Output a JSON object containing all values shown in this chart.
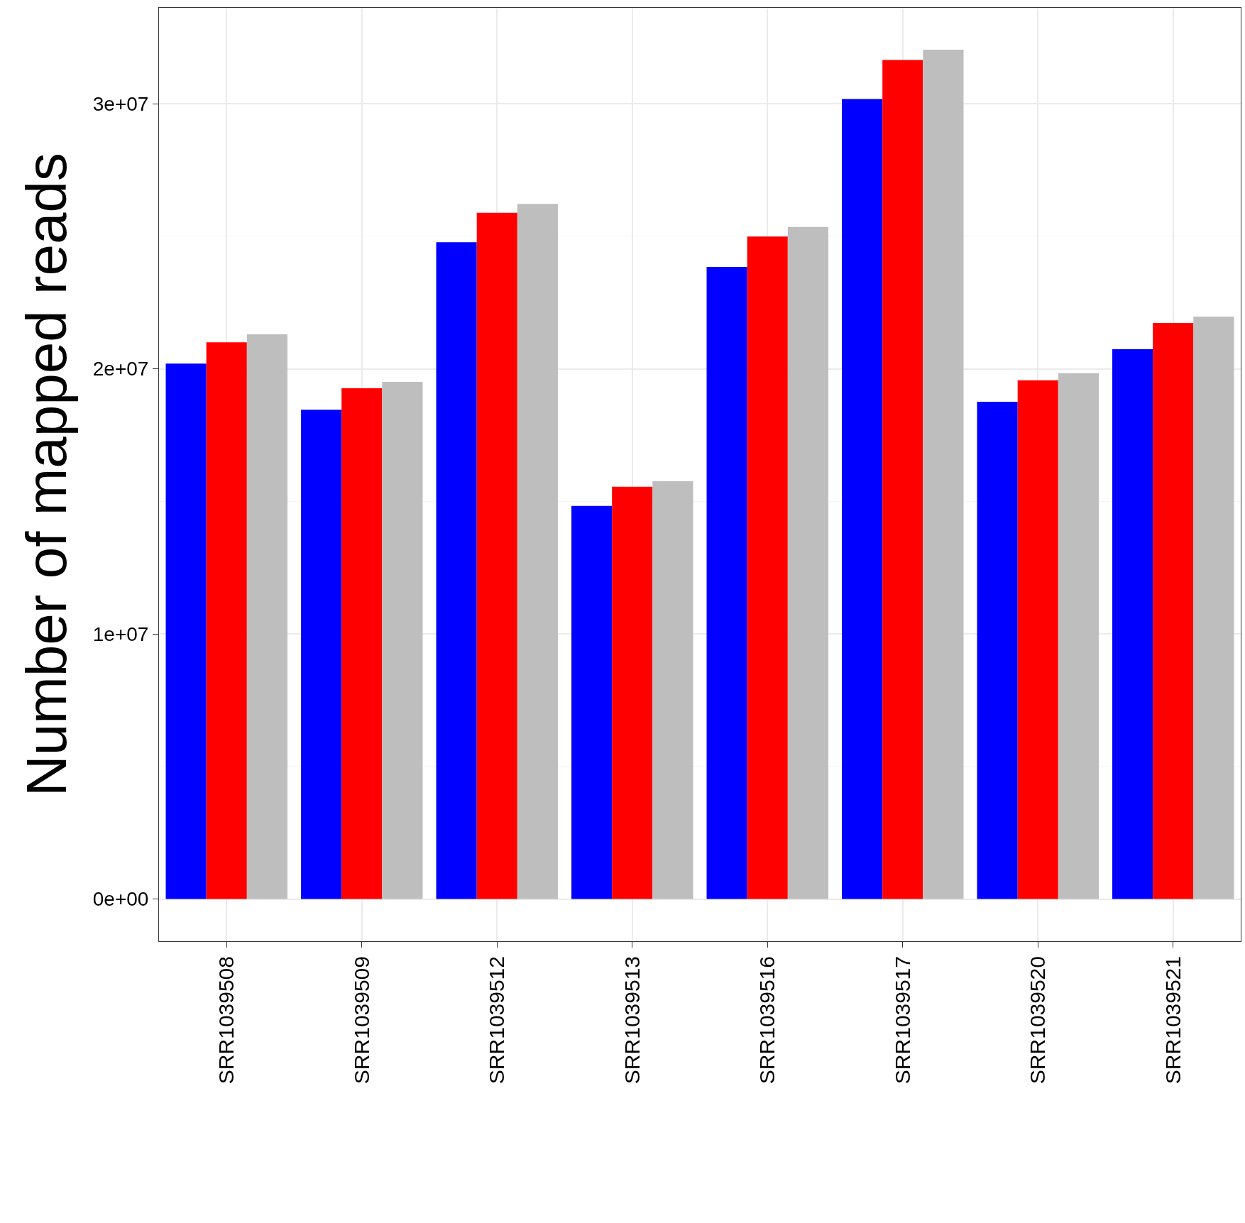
{
  "chart_data": {
    "type": "bar",
    "ylabel": "Number of mapped reads",
    "categories": [
      "SRR1039508",
      "SRR1039509",
      "SRR1039512",
      "SRR1039513",
      "SRR1039516",
      "SRR1039517",
      "SRR1039520",
      "SRR1039521"
    ],
    "series": [
      {
        "color": "#0000ff",
        "values": [
          20200000,
          18460000,
          24780000,
          14830000,
          23850000,
          30180000,
          18760000,
          20740000
        ]
      },
      {
        "color": "#ff0000",
        "values": [
          21000000,
          19270000,
          25890000,
          15550000,
          24990000,
          31650000,
          19570000,
          21730000
        ]
      },
      {
        "color": "#bebebe",
        "values": [
          21300000,
          19510000,
          26220000,
          15760000,
          25350000,
          32040000,
          19840000,
          21970000
        ]
      }
    ],
    "ylim": [
      -1590000,
      33620000
    ],
    "yticks": [
      {
        "value": 0,
        "label": "0e+00"
      },
      {
        "value": 10000000,
        "label": "1e+07"
      },
      {
        "value": 20000000,
        "label": "2e+07"
      },
      {
        "value": 30000000,
        "label": "3e+07"
      }
    ],
    "grid": true
  }
}
